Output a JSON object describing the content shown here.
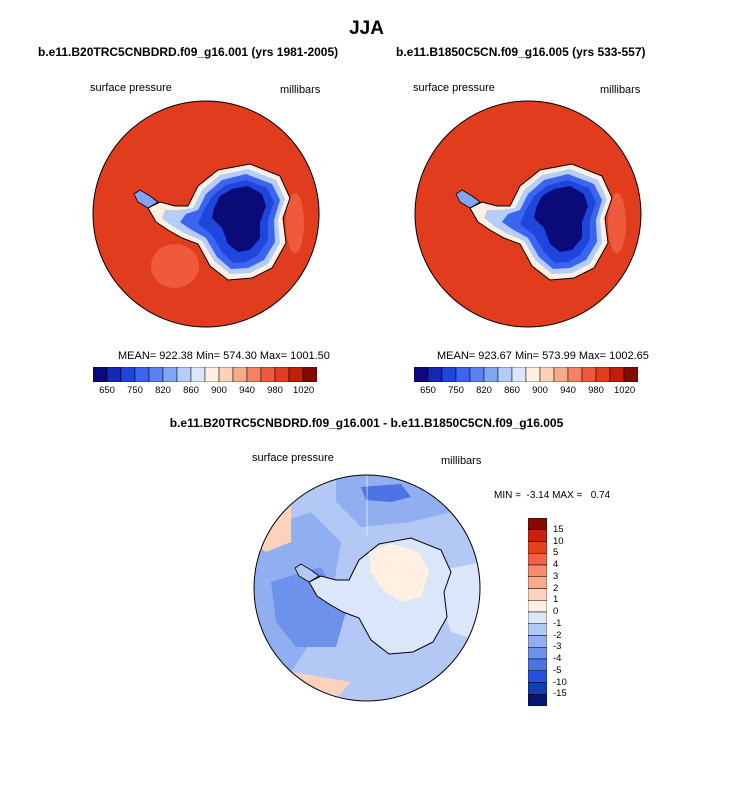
{
  "figure_title": "JJA",
  "panels": [
    {
      "title": "b.e11.B20TRC5CNBDRD.f09_g16.001 (yrs 1981-2005)",
      "variable": "surface pressure",
      "units": "millibars",
      "stats": "MEAN= 922.38   Min= 574.30   Max= 1001.50"
    },
    {
      "title": "b.e11.B1850C5CN.f09_g16.005 (yrs 533-557)",
      "variable": "surface pressure",
      "units": "millibars",
      "stats": "MEAN= 923.67   Min= 573.99   Max= 1002.65"
    }
  ],
  "abs_colorbar": {
    "colors": [
      "#0a0a78",
      "#1428b4",
      "#1e46dc",
      "#3c64f0",
      "#5a82f0",
      "#82a5f5",
      "#b4cdfa",
      "#dce6fa",
      "#fff0e1",
      "#fad2b9",
      "#f5aa8c",
      "#f58264",
      "#f05a3c",
      "#e13c1e",
      "#c31e0a",
      "#820a05"
    ],
    "labels": [
      "650",
      "750",
      "820",
      "860",
      "900",
      "940",
      "980",
      "1020"
    ]
  },
  "diff_panel": {
    "title": "b.e11.B20TRC5CNBDRD.f09_g16.001 - b.e11.B1850C5CN.f09_g16.005",
    "variable": "surface pressure",
    "units": "millibars",
    "minmax": "MIN =  -3.14 MAX =   0.74"
  },
  "diff_colorbar": {
    "colors": [
      "#820a05",
      "#c8200a",
      "#e6411e",
      "#f06446",
      "#f58c6e",
      "#faaa8c",
      "#fcd2be",
      "#fff0e1",
      "#dce6fa",
      "#b4c8f5",
      "#91aff0",
      "#6e91eb",
      "#4b73e6",
      "#2850dc",
      "#143cb4",
      "#0a1478"
    ],
    "labels": [
      "15",
      "10",
      "5",
      "4",
      "3",
      "2",
      "1",
      "0",
      "-1",
      "-2",
      "-3",
      "-4",
      "-5",
      "-10",
      "-15"
    ]
  }
}
